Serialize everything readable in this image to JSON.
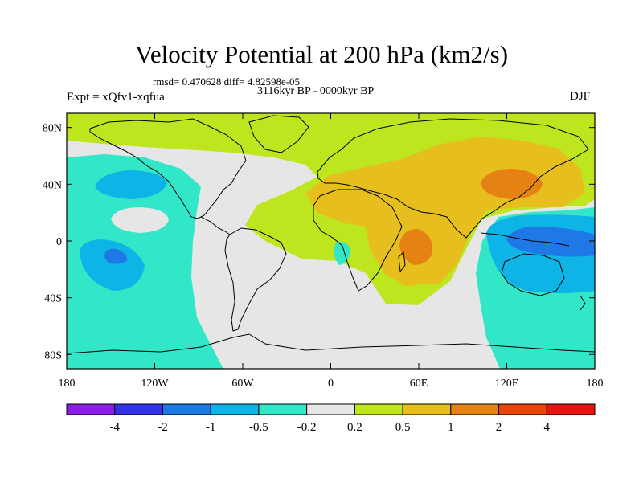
{
  "title": "Velocity Potential at 200 hPa (km2/s)",
  "stats": "rmsd= 0.470628 diff= 4.82598e-05",
  "period": "3116kyr BP - 0000kyr BP",
  "experiment": "Expt = xQfv1-xqfua",
  "season": "DJF",
  "x_ticks": [
    {
      "lon": -180,
      "label": "180"
    },
    {
      "lon": -120,
      "label": "120W"
    },
    {
      "lon": -60,
      "label": "60W"
    },
    {
      "lon": 0,
      "label": "0"
    },
    {
      "lon": 60,
      "label": "60E"
    },
    {
      "lon": 120,
      "label": "120E"
    },
    {
      "lon": 180,
      "label": "180"
    }
  ],
  "y_ticks": [
    {
      "lat": 80,
      "label": "80N"
    },
    {
      "lat": 40,
      "label": "40N"
    },
    {
      "lat": 0,
      "label": "0"
    },
    {
      "lat": -40,
      "label": "40S"
    },
    {
      "lat": -80,
      "label": "80S"
    }
  ],
  "colorbar": {
    "colors": [
      "#8a1ee6",
      "#3232e6",
      "#1e78e6",
      "#0fb4e6",
      "#32e6c8",
      "#e6e6e6",
      "#bee61e",
      "#e6be1e",
      "#e68214",
      "#e6460a",
      "#e61414"
    ],
    "levels": [
      "-4",
      "-2",
      "-1",
      "-0.5",
      "-0.2",
      "0.2",
      "0.5",
      "1",
      "2",
      "4"
    ]
  },
  "field_colors": {
    "neutral": "#e6e6e6",
    "pos1": "#bee61e",
    "pos2": "#e6be1e",
    "pos3": "#e68214",
    "neg1": "#32e6c8",
    "neg2": "#0fb4e6",
    "neg3": "#1e78e6"
  }
}
